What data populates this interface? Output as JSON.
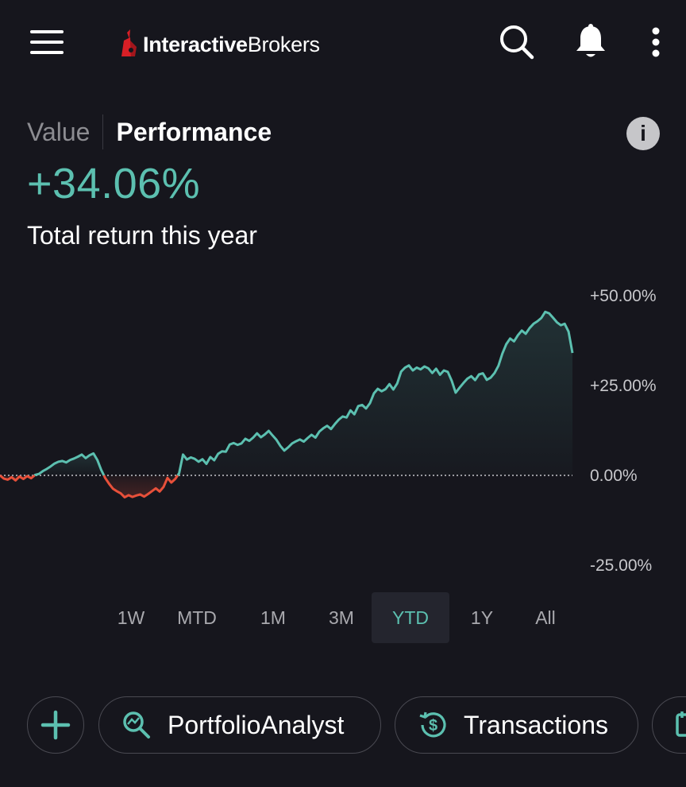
{
  "header": {
    "logo_bold": "Interactive",
    "logo_light": "Brokers",
    "icons": [
      "menu-icon",
      "search-icon",
      "bell-icon",
      "more-vertical-icon"
    ]
  },
  "tabs": {
    "value": "Value",
    "performance": "Performance",
    "active": "performance"
  },
  "summary": {
    "return_value": "+34.06%",
    "caption": "Total return this year"
  },
  "chart_data": {
    "type": "area",
    "y_tick_labels": [
      "+50.00%",
      "+25.00%",
      "0.00%",
      "-25.00%"
    ],
    "y_ticks": [
      50,
      25,
      0,
      -25
    ],
    "ylim": [
      -25,
      50
    ],
    "baseline": 0,
    "positive_color": "#5cc0b0",
    "negative_color": "#e8503a",
    "series": [
      {
        "values": [
          0,
          -0.9,
          -1.2,
          -0.5,
          -1.4,
          -0.3,
          -1.0,
          -0.2,
          -0.8,
          0.1,
          0.4,
          1.2,
          1.8,
          2.5,
          3.3,
          3.8,
          4.0,
          3.6,
          4.3,
          4.7,
          5.2,
          5.8,
          4.8,
          5.6,
          6.1,
          4.3,
          1.5,
          -0.7,
          -2.3,
          -3.7,
          -4.4,
          -5.0,
          -6.1,
          -5.5,
          -6.0,
          -5.6,
          -5.3,
          -5.9,
          -5.2,
          -4.4,
          -3.6,
          -4.5,
          -3.2,
          -0.7,
          -2.0,
          -1.0,
          0.6,
          5.8,
          4.4,
          5.0,
          4.6,
          3.8,
          4.5,
          3.2,
          5.1,
          4.2,
          6.0,
          6.7,
          6.6,
          8.6,
          9.0,
          8.5,
          8.9,
          10.2,
          9.6,
          10.5,
          11.7,
          10.6,
          11.4,
          12.4,
          11.1,
          9.9,
          8.2,
          6.9,
          7.8,
          8.9,
          9.5,
          10.0,
          9.4,
          10.4,
          11.3,
          10.5,
          12.2,
          13.1,
          13.8,
          12.9,
          14.3,
          15.5,
          16.4,
          16.1,
          18.1,
          17.0,
          19.3,
          19.6,
          18.6,
          20.1,
          22.8,
          24.1,
          23.4,
          24.0,
          25.4,
          23.9,
          25.6,
          28.9,
          30.0,
          30.6,
          29.2,
          30.0,
          29.5,
          30.3,
          29.8,
          28.5,
          29.7,
          28.0,
          29.2,
          28.8,
          26.3,
          23.0,
          24.4,
          25.7,
          26.9,
          27.6,
          26.5,
          28.1,
          28.4,
          26.6,
          27.2,
          28.5,
          30.5,
          33.9,
          36.5,
          38.1,
          37.3,
          39.0,
          40.3,
          39.4,
          41.0,
          42.2,
          42.9,
          43.8,
          45.5,
          45.1,
          43.9,
          42.6,
          41.8,
          42.2,
          40.0,
          34.06
        ]
      }
    ]
  },
  "ranges": [
    "1W",
    "MTD",
    "1M",
    "3M",
    "YTD",
    "1Y",
    "All"
  ],
  "active_range": "YTD",
  "actions": {
    "add_icon": "plus-icon",
    "portfolio_label": "PortfolioAnalyst",
    "portfolio_icon": "analytics-search-icon",
    "transactions_label": "Transactions",
    "transactions_icon": "dollar-history-icon",
    "partial_icon": "calendar-icon"
  }
}
